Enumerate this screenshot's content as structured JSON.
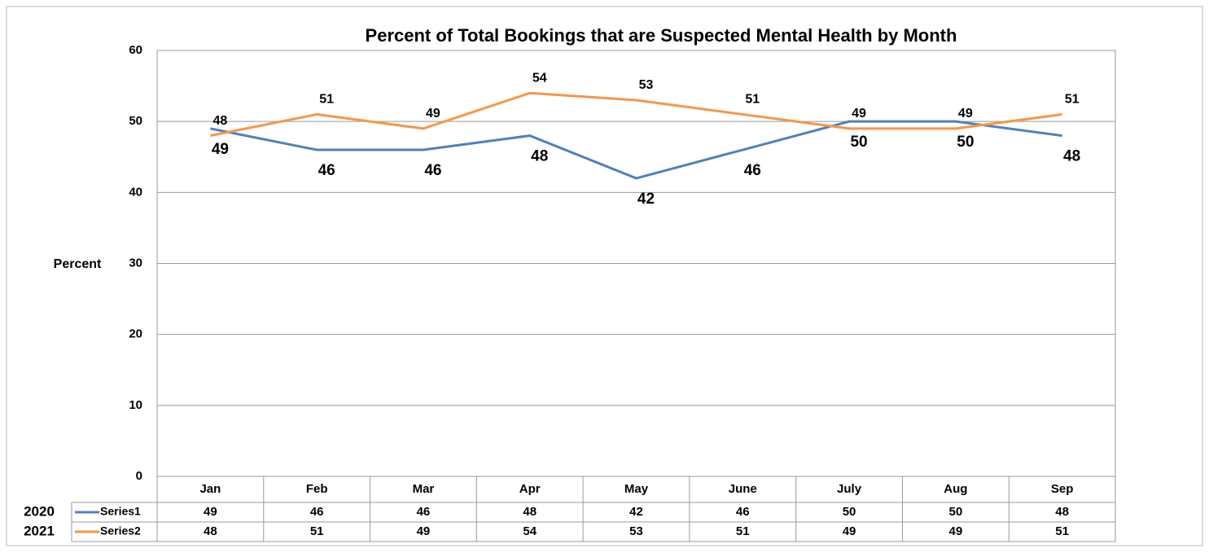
{
  "chart_data": {
    "type": "line",
    "title": "Percent of Total Bookings that are Suspected Mental Health by Month",
    "y_label": "Percent",
    "categories": [
      "Jan",
      "Feb",
      "Mar",
      "Apr",
      "May",
      "June",
      "July",
      "Aug",
      "Sep"
    ],
    "series": [
      {
        "name": "Series1",
        "label": "2020",
        "color": "#4f81bd",
        "values": [
          49,
          46,
          46,
          48,
          42,
          46,
          50,
          50,
          48
        ]
      },
      {
        "name": "Series2",
        "label": "2021",
        "color": "#f79646",
        "values": [
          48,
          51,
          49,
          54,
          53,
          51,
          49,
          49,
          51
        ]
      }
    ],
    "ylim": [
      0,
      60
    ],
    "yticks": [
      0,
      10,
      20,
      30,
      40,
      50,
      60
    ],
    "grid": true,
    "data_table": true
  }
}
